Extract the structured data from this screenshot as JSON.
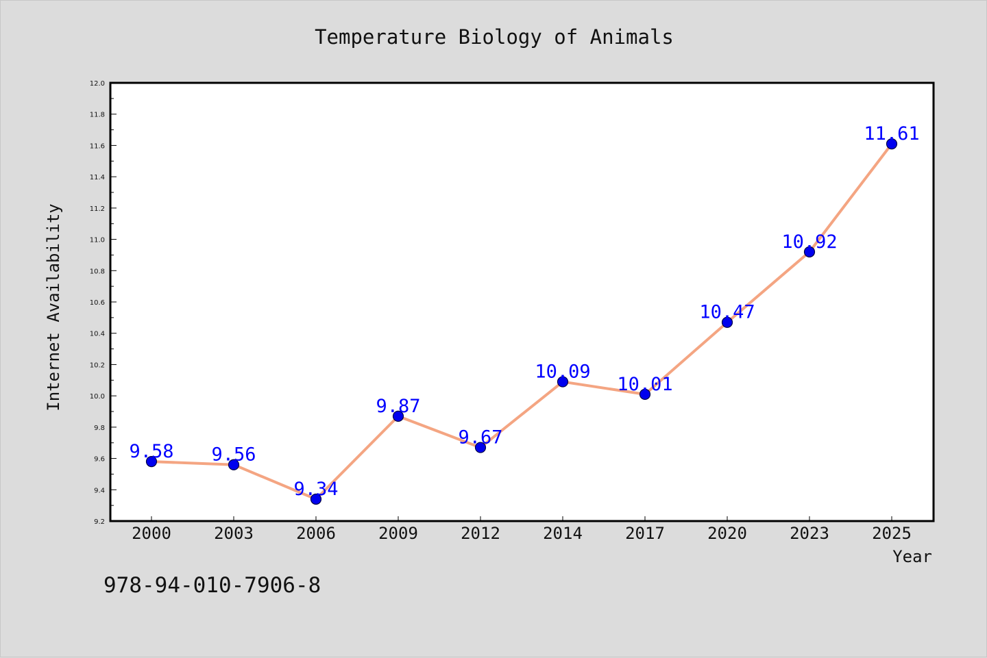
{
  "chart_data": {
    "type": "line",
    "title": "Temperature Biology of Animals",
    "xlabel": "Year",
    "ylabel": "Internet Availability",
    "categories": [
      "2000",
      "2003",
      "2006",
      "2009",
      "2012",
      "2014",
      "2017",
      "2020",
      "2023",
      "2025"
    ],
    "series": [
      {
        "values": [
          9.58,
          9.56,
          9.34,
          9.87,
          9.67,
          10.09,
          10.01,
          10.47,
          10.92,
          11.61
        ],
        "data_labels": [
          "9.58",
          "9.56",
          "9.34",
          "9.87",
          "9.67",
          "10.09",
          "10.01",
          "10.47",
          "10.92",
          "11.61"
        ]
      }
    ],
    "ylim": [
      9.2,
      12.0
    ],
    "y_ticks": [
      "9.2",
      "9.4",
      "9.6",
      "9.8",
      "10.0",
      "10.2",
      "10.4",
      "10.6",
      "10.8",
      "11.0",
      "11.2",
      "11.4",
      "11.6",
      "11.8",
      "12.0"
    ],
    "grid": false,
    "legend": "none",
    "colors": {
      "line": "#f4a582",
      "marker_fill": "#0000ee",
      "marker_edge": "#000044",
      "data_label": "#0000ff",
      "background": "#dcdcdc",
      "plot_background": "#ffffff"
    }
  },
  "footer": {
    "isbn": "978-94-010-7906-8"
  }
}
